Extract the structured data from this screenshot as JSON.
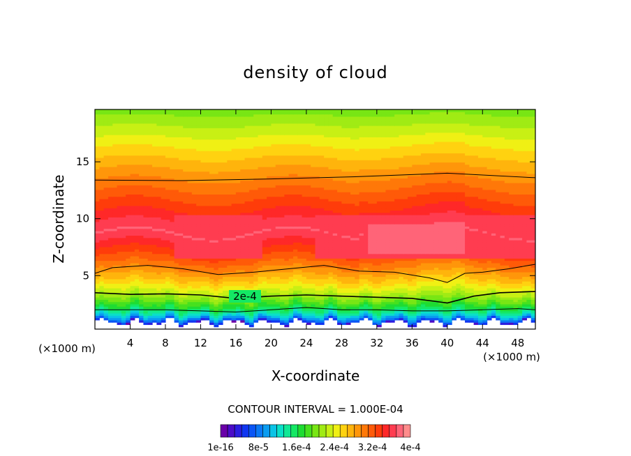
{
  "chart_data": {
    "type": "heatmap",
    "title": "density of cloud",
    "xlabel": "X-coordinate",
    "ylabel": "Z-coordinate",
    "x_unit_left": "(×1000 m)",
    "x_unit_right": "(×1000 m)",
    "xlim": [
      0,
      50
    ],
    "ylim": [
      0.3,
      19.6
    ],
    "x_ticks": [
      4,
      8,
      12,
      16,
      20,
      24,
      28,
      32,
      36,
      40,
      44,
      48
    ],
    "y_ticks": [
      5,
      10,
      15
    ],
    "contour_label": "2e-4",
    "contour_interval_text": "CONTOUR INTERVAL = 1.000E-04",
    "colorbar_labels": [
      "1e-16",
      "8e-5",
      "1.6e-4",
      "2.4e-4",
      "3.2e-4",
      "4e-4"
    ],
    "colorbar_colors": [
      "#6a00a8",
      "#4b0cc8",
      "#2b1ee0",
      "#1036f0",
      "#0a55f5",
      "#0a78f5",
      "#0a9cf0",
      "#0ac3e6",
      "#0ae0c8",
      "#10e896",
      "#14e864",
      "#1edc32",
      "#46e11e",
      "#78e614",
      "#a0eb14",
      "#c8f014",
      "#f0f014",
      "#ffd210",
      "#ffb40c",
      "#ff960a",
      "#ff7808",
      "#ff5a08",
      "#ff3c0a",
      "#ff2828",
      "#ff3c50",
      "#ff6478",
      "#ff8c8c"
    ],
    "contour_lines_z": [
      {
        "level": "upper",
        "points": [
          [
            0,
            13.4
          ],
          [
            10,
            13.35
          ],
          [
            20,
            13.5
          ],
          [
            30,
            13.7
          ],
          [
            40,
            14.0
          ],
          [
            50,
            13.6
          ]
        ]
      },
      {
        "level": "mid",
        "points": [
          [
            0,
            5.2
          ],
          [
            2,
            5.7
          ],
          [
            6,
            5.9
          ],
          [
            10,
            5.6
          ],
          [
            14,
            5.1
          ],
          [
            18,
            5.3
          ],
          [
            22,
            5.6
          ],
          [
            26,
            5.9
          ],
          [
            30,
            5.4
          ],
          [
            34,
            5.3
          ],
          [
            38,
            4.8
          ],
          [
            40,
            4.4
          ],
          [
            42,
            5.2
          ],
          [
            44,
            5.3
          ],
          [
            47,
            5.6
          ],
          [
            50,
            6.0
          ]
        ]
      },
      {
        "level": "lower",
        "points": [
          [
            0,
            3.5
          ],
          [
            4,
            3.35
          ],
          [
            8,
            3.4
          ],
          [
            12,
            3.3
          ],
          [
            16,
            3.0
          ],
          [
            20,
            3.2
          ],
          [
            24,
            3.3
          ],
          [
            28,
            3.2
          ],
          [
            32,
            3.1
          ],
          [
            36,
            3.0
          ],
          [
            40,
            2.6
          ],
          [
            43,
            3.2
          ],
          [
            46,
            3.5
          ],
          [
            50,
            3.6
          ]
        ]
      },
      {
        "level": "bottom",
        "points": [
          [
            0,
            2.0
          ],
          [
            4,
            2.0
          ],
          [
            8,
            2.0
          ],
          [
            12,
            1.9
          ],
          [
            16,
            1.8
          ],
          [
            20,
            2.0
          ],
          [
            24,
            2.2
          ],
          [
            28,
            2.0
          ],
          [
            32,
            2.0
          ],
          [
            36,
            1.9
          ],
          [
            40,
            1.9
          ],
          [
            44,
            2.0
          ],
          [
            48,
            2.1
          ],
          [
            50,
            2.0
          ]
        ]
      }
    ]
  }
}
